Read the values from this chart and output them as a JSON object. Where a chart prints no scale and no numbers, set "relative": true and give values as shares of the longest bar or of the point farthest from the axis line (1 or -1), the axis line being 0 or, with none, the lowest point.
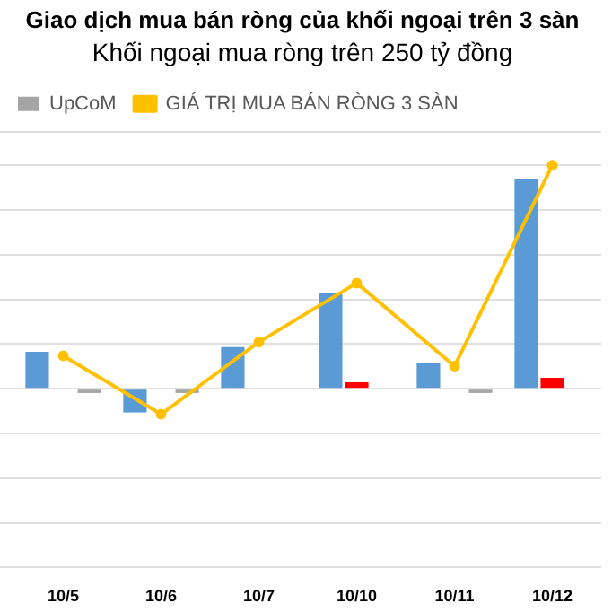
{
  "chart_data": {
    "type": "bar",
    "title": "Giao dịch mua bán ròng của khối ngoại trên 3 sàn",
    "subtitle": "Khối ngoại mua ròng trên 250 tỷ đồng",
    "relative": true,
    "grid": "y",
    "legend": "top left",
    "categories": [
      "10/5",
      "10/6",
      "10/7",
      "10/10",
      "10/11",
      "10/12"
    ],
    "series": [
      {
        "color": "#5b9bd5",
        "values": [
          0.165,
          -0.106,
          0.186,
          0.429,
          0.116,
          0.938
        ]
      },
      {
        "color": "#ff0000",
        "values": [
          -0.004,
          0.004,
          0.004,
          0.029,
          0.004,
          0.049
        ]
      },
      {
        "name": "UpCoM",
        "color": "#a5a5a5",
        "values": [
          -0.019,
          -0.019,
          null,
          null,
          -0.019,
          null
        ]
      },
      {
        "name": "GIÁ TRỊ MUA BÁN RÒNG 3 SÀN",
        "type": "line",
        "marker": "circle",
        "color": "#ffc000",
        "values": [
          0.147,
          -0.114,
          0.209,
          0.473,
          0.101,
          1
        ]
      }
    ]
  }
}
